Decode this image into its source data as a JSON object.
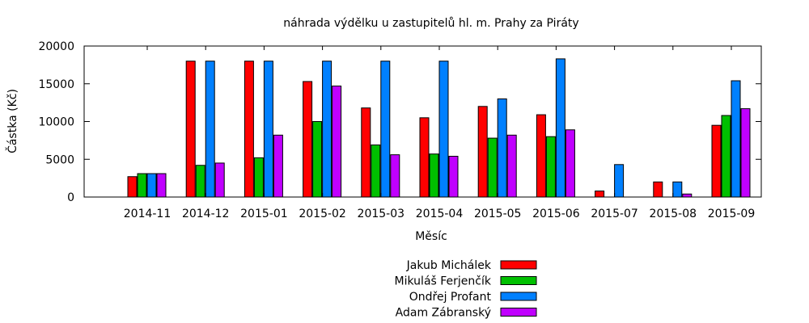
{
  "chart_data": {
    "type": "bar",
    "title": "náhrada výdělku u zastupitelů hl. m. Prahy za Piráty",
    "xlabel": "Měsíc",
    "ylabel": "Částka (Kč)",
    "ylim": [
      0,
      20000
    ],
    "yticks": [
      "0",
      "5000",
      "10000",
      "15000",
      "20000"
    ],
    "grid": false,
    "legend": "bottom-center",
    "categories": [
      "2014-11",
      "2014-12",
      "2015-01",
      "2015-02",
      "2015-03",
      "2015-04",
      "2015-05",
      "2015-06",
      "2015-07",
      "2015-08",
      "2015-09"
    ],
    "series": [
      {
        "name": "Jakub Michálek",
        "color": "#ff0000",
        "values": [
          2700,
          18000,
          18000,
          15300,
          11800,
          10500,
          12000,
          10900,
          800,
          2000,
          9500
        ]
      },
      {
        "name": "Mikuláš Ferjenčík",
        "color": "#00c000",
        "values": [
          3100,
          4200,
          5200,
          10000,
          6900,
          5700,
          7800,
          8000,
          0,
          0,
          10800
        ]
      },
      {
        "name": "Ondřej Profant",
        "color": "#0080ff",
        "values": [
          3100,
          18000,
          18000,
          18000,
          18000,
          18000,
          13000,
          18300,
          4300,
          2000,
          15400
        ]
      },
      {
        "name": "Adam Zábranský",
        "color": "#c000ff",
        "values": [
          3100,
          4500,
          8200,
          14700,
          5600,
          5400,
          8200,
          8900,
          0,
          400,
          11700
        ]
      }
    ]
  }
}
